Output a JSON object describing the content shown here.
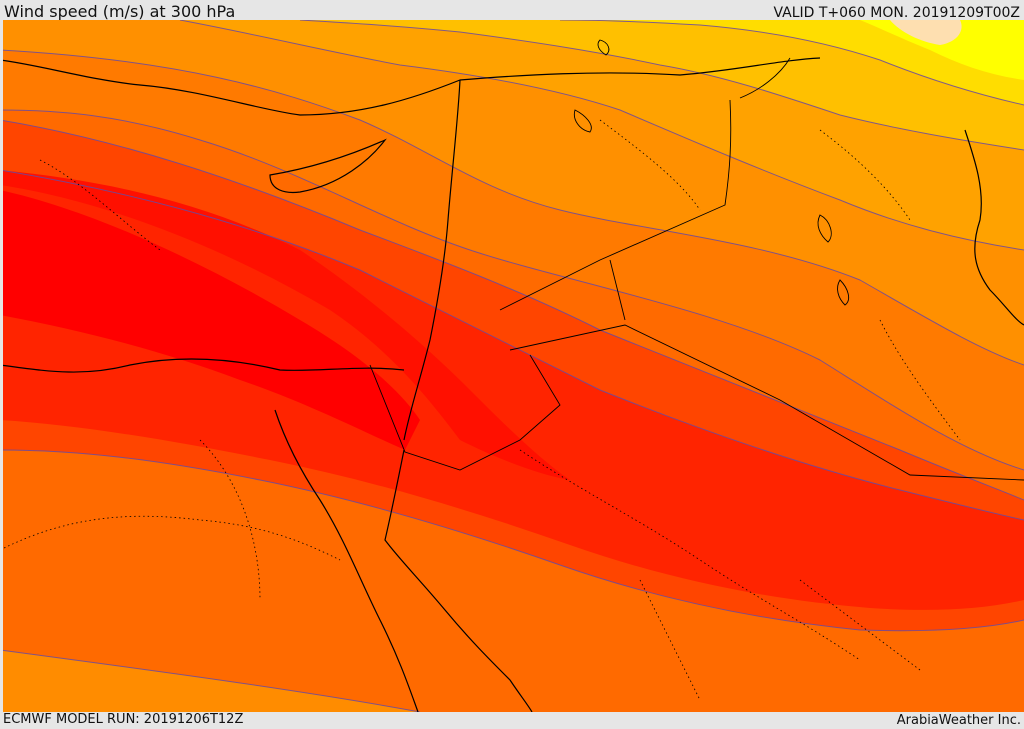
{
  "header": {
    "title": "Wind speed (m/s) at 300 hPa",
    "valid": "VALID T+060 MON. 20191209T00Z"
  },
  "footer": {
    "model_run": "ECMWF MODEL RUN: 20191206T12Z",
    "credit": "ArabiaWeather Inc."
  },
  "map": {
    "variable": "wind speed",
    "level": "300 hPa",
    "palette": {
      "very_light": "#fedfb0",
      "yellow": "#ffff00",
      "gold": "#ffd700",
      "amber": "#ffb300",
      "orange_light": "#ffa200",
      "orange": "#ff8800",
      "orange_dark": "#ff6a00",
      "red_orange": "#ff4500",
      "red_orange_2": "#ff2a00",
      "red": "#ff0000",
      "contour": "#6a4aa0",
      "coast": "#000000"
    }
  }
}
